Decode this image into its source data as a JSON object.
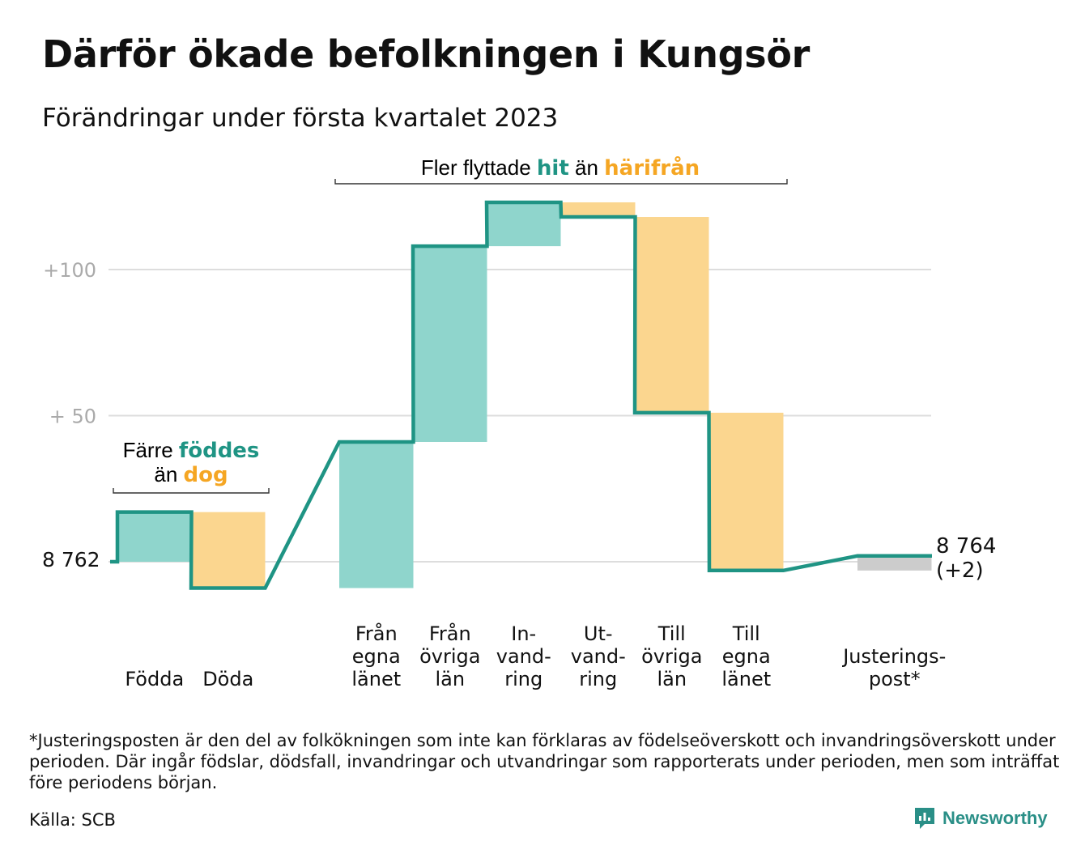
{
  "title": "Därför ökade befolkningen i Kungsör",
  "subtitle": "Förändringar under första kvartalet 2023",
  "footnote": "*Justeringsposten är den del av folkökningen som inte kan förklaras av födelseöverskott och invandringsöverskott under perioden. Där ingår födslar, dödsfall, invandringar och utvandringar som rapporterats under perioden, men som inträffat före periodens början.",
  "source": "Källa: SCB",
  "brand": "Newsworthy",
  "colors": {
    "increase": "#8fd5cc",
    "decrease": "#fbd68f",
    "adjustment": "#cccccc",
    "line": "#1f9484",
    "gridline": "#dddddd",
    "teal_text": "#1f9484",
    "orange_text": "#f5a623"
  },
  "annotations": {
    "births_deaths": {
      "line1_a": "Färre ",
      "line1_b": "föddes",
      "line2_a": "än ",
      "line2_b": "dog"
    },
    "migration": {
      "a": "Fler flyttade ",
      "b": "hit",
      "c": " än ",
      "d": "härifrån"
    }
  },
  "chart_data": {
    "type": "waterfall",
    "start_value": 8762,
    "start_label": "8 762",
    "end_label_line1": "8 764",
    "end_label_line2": "(+2)",
    "y_ticks": [
      {
        "value": 100,
        "label": "+100"
      },
      {
        "value": 50,
        "label": "+ 50"
      }
    ],
    "ylim": [
      -13,
      125
    ],
    "steps": [
      {
        "label_lines": [
          "Födda"
        ],
        "value": 17,
        "kind": "increase"
      },
      {
        "label_lines": [
          "Döda"
        ],
        "value": -26,
        "kind": "decrease"
      },
      {
        "label_lines": [
          "Från",
          "egna",
          "länet"
        ],
        "value": 50,
        "kind": "increase"
      },
      {
        "label_lines": [
          "Från",
          "övriga",
          "län"
        ],
        "value": 67,
        "kind": "increase"
      },
      {
        "label_lines": [
          "In-",
          "vand-",
          "ring"
        ],
        "value": 15,
        "kind": "increase"
      },
      {
        "label_lines": [
          "Ut-",
          "vand-",
          "ring"
        ],
        "value": -5,
        "kind": "decrease"
      },
      {
        "label_lines": [
          "Till",
          "övriga",
          "län"
        ],
        "value": -67,
        "kind": "decrease"
      },
      {
        "label_lines": [
          "Till",
          "egna",
          "länet"
        ],
        "value": -54,
        "kind": "decrease"
      },
      {
        "label_lines": [
          "Justerings-",
          "post*"
        ],
        "value": 5,
        "kind": "adjustment"
      }
    ]
  }
}
